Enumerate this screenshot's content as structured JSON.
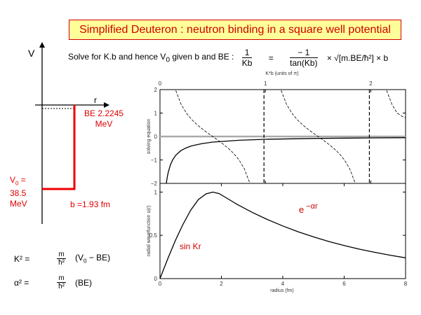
{
  "title": "Simplified Deuteron : neutron binding in a square well potential",
  "equation": {
    "prefix": "Solve for K.b and hence V",
    "prefix_sub": "0",
    "prefix_suffix": " given b and BE :",
    "lhs_num": "1",
    "lhs_den": "Kb",
    "equals": "=",
    "rhs_num": "− 1",
    "rhs_den": "tan(Kb)",
    "tail": "× √[m.BE/ħ²] × b"
  },
  "potential_diagram": {
    "v_axis_label": "V",
    "r_axis_label": "r",
    "be_label": "BE 2.2245",
    "be_unit": "MeV",
    "v0_label_a": "V",
    "v0_sub": "0",
    "v0_label_b": " =",
    "v0_value": "38.5",
    "v0_unit": "MeV",
    "b_label": "b =1.93 fm",
    "well_color": "#ee0000"
  },
  "formulas": [
    {
      "lhs": "K² =",
      "num": "m",
      "den": "ħ²",
      "rhs_a": "(V",
      "rhs_sub": "0",
      "rhs_b": " − BE)"
    },
    {
      "lhs": "α² =",
      "num": "m",
      "den": "ħ²",
      "rhs_a": "(BE)",
      "rhs_sub": "",
      "rhs_b": ""
    }
  ],
  "chart_data": [
    {
      "type": "line",
      "title": "",
      "xlabel": "K*b (units of π)",
      "ylabel": "solving equation",
      "xlim": [
        0,
        2.33
      ],
      "ylim": [
        -2,
        2
      ],
      "xticks": [
        "0",
        "1",
        "2"
      ],
      "xtick_values": [
        0,
        1,
        2
      ],
      "yticks": [
        "2",
        "1",
        "0",
        "−1",
        "−2"
      ],
      "ytick_values": [
        2,
        1,
        0,
        -1,
        -2
      ],
      "zero_line_color": "#aaaaaa",
      "asymptotes": [
        1,
        2
      ],
      "series": [
        {
          "style": "dashed",
          "branches": [
            {
              "x": [
                0.15,
                0.2,
                0.25,
                0.3,
                0.35,
                0.4,
                0.45,
                0.5,
                0.55,
                0.6,
                0.65,
                0.7,
                0.75,
                0.8,
                0.85
              ],
              "y": [
                1.963,
                1.376,
                1,
                0.727,
                0.51,
                0.325,
                0.158,
                0,
                -0.158,
                -0.325,
                -0.51,
                -0.727,
                -1,
                -1.376,
                -1.963
              ]
            },
            {
              "x": [
                1.15,
                1.2,
                1.25,
                1.3,
                1.35,
                1.4,
                1.45,
                1.5,
                1.55,
                1.6,
                1.65,
                1.7,
                1.75,
                1.8,
                1.85
              ],
              "y": [
                1.963,
                1.376,
                1,
                0.727,
                0.51,
                0.325,
                0.158,
                0,
                -0.158,
                -0.325,
                -0.51,
                -0.727,
                -1,
                -1.376,
                -1.963
              ]
            },
            {
              "x": [
                2.15,
                2.2,
                2.25,
                2.3,
                2.33
              ],
              "y": [
                1.963,
                1.376,
                1,
                0.85,
                0.8
              ]
            }
          ]
        },
        {
          "style": "solid",
          "branches": [
            {
              "x": [
                0.06,
                0.07,
                0.08,
                0.1,
                0.12,
                0.15,
                0.2,
                0.25,
                0.3,
                0.4,
                0.5,
                0.75,
                1,
                1.5,
                2,
                2.33
              ],
              "y": [
                -2,
                -1.71,
                -1.5,
                -1.2,
                -1.0,
                -0.8,
                -0.6,
                -0.48,
                -0.4,
                -0.3,
                -0.24,
                -0.16,
                -0.12,
                -0.08,
                -0.06,
                -0.05
              ]
            }
          ]
        }
      ]
    },
    {
      "type": "line",
      "title": "",
      "xlabel": "radius (fm)",
      "ylabel": "radial wavefunction u(r)",
      "xlim": [
        0,
        8
      ],
      "ylim": [
        0,
        1.1
      ],
      "xticks": [
        "0",
        "2",
        "4",
        "6",
        "8"
      ],
      "xtick_values": [
        0,
        2,
        4,
        6,
        8
      ],
      "yticks": [
        "0",
        "0.5",
        "1"
      ],
      "ytick_values": [
        0,
        0.5,
        1
      ],
      "series": [
        {
          "style": "solid",
          "x": [
            0,
            0.25,
            0.5,
            0.75,
            1,
            1.25,
            1.5,
            1.72,
            1.93,
            2.25,
            2.5,
            3,
            3.5,
            4,
            4.5,
            5,
            5.5,
            6,
            6.5,
            7,
            7.5,
            8
          ],
          "y": [
            0,
            0.226,
            0.44,
            0.627,
            0.791,
            0.913,
            0.979,
            1.0,
            0.982,
            0.914,
            0.86,
            0.766,
            0.683,
            0.608,
            0.541,
            0.482,
            0.429,
            0.382,
            0.34,
            0.303,
            0.27,
            0.24
          ]
        }
      ],
      "annotations": [
        {
          "text": "sin Kr",
          "color": "#cc0000"
        },
        {
          "text": "e",
          "sup": "−αr",
          "color": "#cc0000"
        }
      ]
    }
  ]
}
